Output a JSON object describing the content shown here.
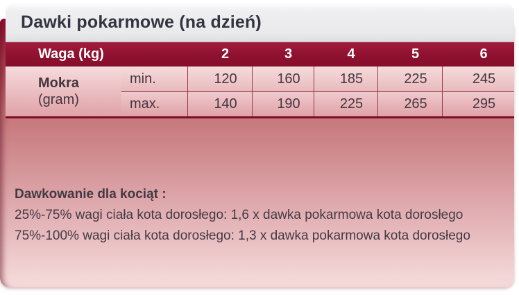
{
  "title": "Dawki pokarmowe (na dzień)",
  "table": {
    "header": {
      "label": "Waga (kg)",
      "columns": [
        "2",
        "3",
        "4",
        "5",
        "6"
      ]
    },
    "row_group_label": {
      "name": "Mokra",
      "unit": "(gram)"
    },
    "rows": [
      {
        "label": "min.",
        "values": [
          "120",
          "160",
          "185",
          "225",
          "245"
        ]
      },
      {
        "label": "max.",
        "values": [
          "140",
          "190",
          "225",
          "265",
          "295"
        ]
      }
    ]
  },
  "notes": {
    "heading": "Dawkowanie dla kociąt :",
    "lines": [
      "25%-75% wagi ciała kota dorosłego: 1,6 x dawka pokarmowa kota dorosłego",
      "75%-100% wagi ciała kota dorosłego: 1,3 x dawka pokarmowa kota dorosłego"
    ]
  },
  "colors": {
    "maroon_header": "#8e1130",
    "panel_gradient_top": "#93142f",
    "panel_gradient_bottom": "#f4d9d8",
    "row_pink_light": "#f6dbdc",
    "row_pink_dark": "#dfa2a7",
    "title_text": "#343440",
    "body_text": "#46353f",
    "grid_line": "#8d3a4d",
    "titlebar_bg": "#e9e9ec"
  }
}
